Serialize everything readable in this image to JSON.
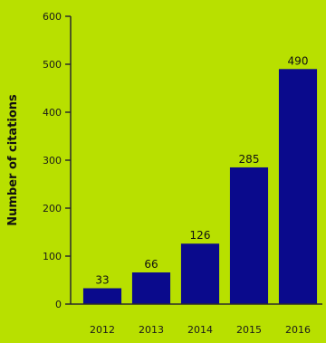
{
  "chart_data": {
    "type": "bar",
    "title": "",
    "xlabel": "",
    "ylabel": "Number of citations",
    "categories": [
      "2012",
      "2013",
      "2014",
      "2015",
      "2016"
    ],
    "values": [
      33,
      66,
      126,
      285,
      490
    ],
    "data_labels": [
      "33",
      "66",
      "126",
      "285",
      "490"
    ],
    "ylim": [
      0,
      600
    ],
    "yticks": [
      "0",
      "100",
      "200",
      "300",
      "400",
      "500",
      "600"
    ],
    "grid": false,
    "legend": "none",
    "colors": {
      "background": "#b8e000",
      "bar": "#0a0a8c",
      "axis": "#2a2a2a",
      "text": "#111111"
    }
  }
}
